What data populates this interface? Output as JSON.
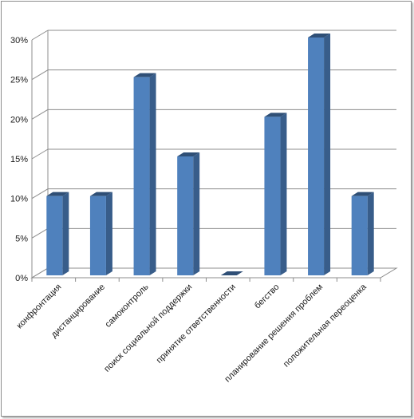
{
  "chart_data": {
    "type": "bar",
    "style": "3d-column",
    "title": "",
    "xlabel": "",
    "ylabel": "",
    "categories": [
      "конфронтация",
      "дистанцирование",
      "самоконтроль",
      "поиск социальной поддержки",
      "принятие ответственности",
      "бегство",
      "планирование решения проблем",
      "положительная переоценка"
    ],
    "values": [
      10,
      10,
      25,
      15,
      0,
      20,
      30,
      10
    ],
    "ylim": [
      0,
      30
    ],
    "yticks": [
      "0%",
      "5%",
      "10%",
      "15%",
      "20%",
      "25%",
      "30%"
    ],
    "grid": true,
    "legend": "none",
    "colors": {
      "bar_front": "#4f81bd",
      "bar_side": "#385d8a",
      "bar_top": "#2f4f76",
      "grid": "#8c8c8c"
    }
  }
}
